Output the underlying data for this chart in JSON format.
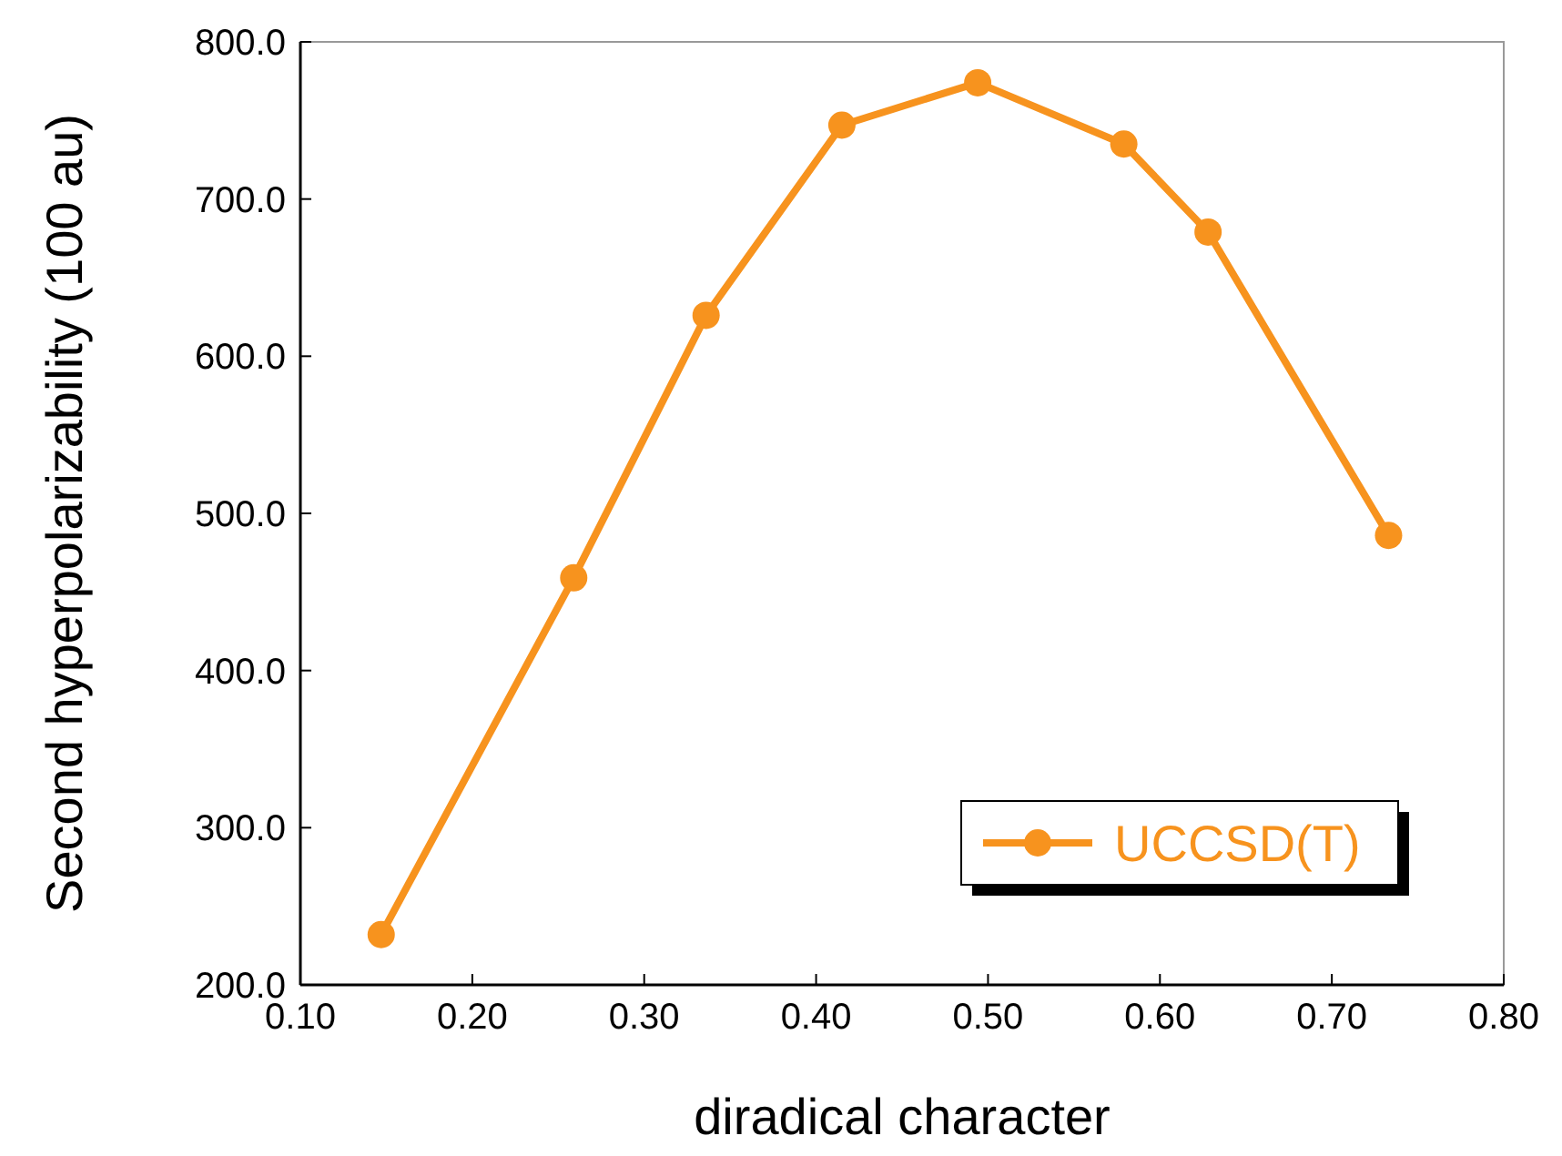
{
  "chart_data": {
    "type": "line",
    "xlabel": "diradical character",
    "ylabel": "Second hyperpolarizability (100 au)",
    "x": [
      0.147,
      0.259,
      0.336,
      0.415,
      0.494,
      0.579,
      0.628,
      0.733
    ],
    "series": [
      {
        "name": "UCCSD(T)",
        "color": "#f7931e",
        "values": [
          232,
          459,
          626,
          747,
          774,
          735,
          679,
          486
        ]
      }
    ],
    "xlim": [
      0.1,
      0.8
    ],
    "xticks": [
      {
        "value": 0.1,
        "label": "0.10"
      },
      {
        "value": 0.2,
        "label": "0.20"
      },
      {
        "value": 0.3,
        "label": "0.30"
      },
      {
        "value": 0.4,
        "label": "0.40"
      },
      {
        "value": 0.5,
        "label": "0.50"
      },
      {
        "value": 0.6,
        "label": "0.60"
      },
      {
        "value": 0.7,
        "label": "0.70"
      },
      {
        "value": 0.8,
        "label": "0.80"
      }
    ],
    "ylim": [
      200,
      800
    ],
    "yticks": [
      {
        "value": 200,
        "label": "200.0"
      },
      {
        "value": 300,
        "label": "300.0"
      },
      {
        "value": 400,
        "label": "400.0"
      },
      {
        "value": 500,
        "label": "500.0"
      },
      {
        "value": 600,
        "label": "600.0"
      },
      {
        "value": 700,
        "label": "700.0"
      },
      {
        "value": 800,
        "label": "800.0"
      }
    ],
    "marker": "circle",
    "line_style": "solid",
    "legend": "bottom right",
    "grid": false
  }
}
